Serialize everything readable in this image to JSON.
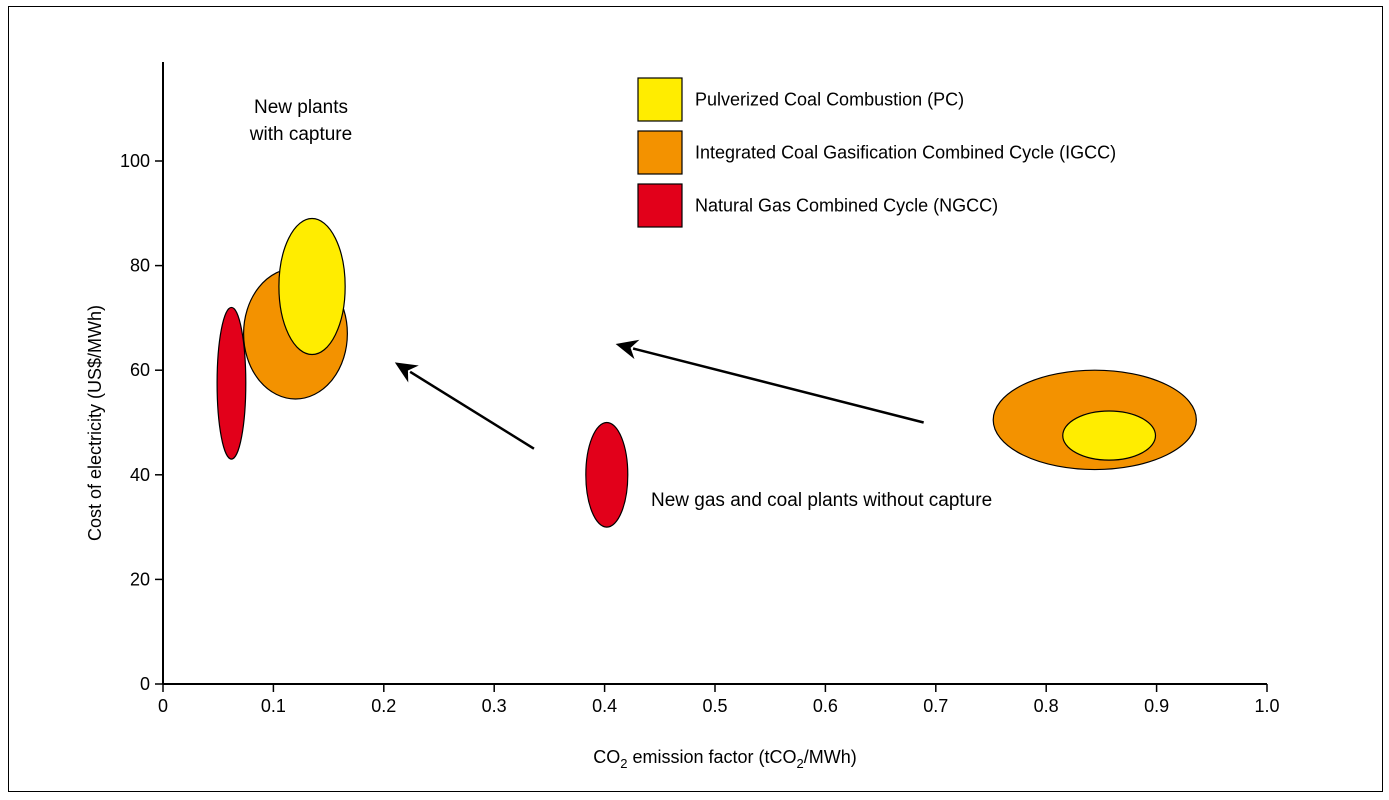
{
  "chart_data": {
    "type": "scatter",
    "title": "",
    "xlabel_main": "CO",
    "xlabel_sub": "2",
    "xlabel_rest": " emission factor (tCO",
    "xlabel_sub2": "2",
    "xlabel_end": "/MWh)",
    "ylabel": "Cost of electricity (US$/MWh)",
    "xlim": [
      0,
      1.0
    ],
    "ylim": [
      0,
      110
    ],
    "x_ticks": [
      "0",
      "0.1",
      "0.2",
      "0.3",
      "0.4",
      "0.5",
      "0.6",
      "0.7",
      "0.8",
      "0.9",
      "1.0"
    ],
    "x_tick_values": [
      0,
      0.1,
      0.2,
      0.3,
      0.4,
      0.5,
      0.6,
      0.7,
      0.8,
      0.9,
      1.0
    ],
    "y_ticks": [
      "0",
      "20",
      "40",
      "60",
      "80",
      "100"
    ],
    "y_tick_values": [
      0,
      20,
      40,
      60,
      80,
      100
    ],
    "grid": false,
    "legend_position": "top-right",
    "series": [
      {
        "name": "Pulverized Coal Combustion (PC)",
        "color": "#FFED00"
      },
      {
        "name": "Integrated Coal Gasification Combined Cycle (IGCC)",
        "color": "#F39200"
      },
      {
        "name": "Natural Gas Combined Cycle (NGCC)",
        "color": "#E2001A"
      }
    ],
    "ranges": [
      {
        "series": 1,
        "label": "IGCC with capture",
        "cx": 0.12,
        "cy": 67,
        "rx": 0.047,
        "ry": 12.5
      },
      {
        "series": 0,
        "label": "PC with capture",
        "cx": 0.135,
        "cy": 76,
        "rx": 0.03,
        "ry": 13
      },
      {
        "series": 2,
        "label": "NGCC with capture",
        "cx": 0.062,
        "cy": 57.5,
        "rx": 0.013,
        "ry": 14.5
      },
      {
        "series": 2,
        "label": "NGCC without capture",
        "cx": 0.402,
        "cy": 40,
        "rx": 0.019,
        "ry": 10
      },
      {
        "series": 1,
        "label": "IGCC without capture",
        "cx": 0.844,
        "cy": 50.5,
        "rx": 0.092,
        "ry": 9.5
      },
      {
        "series": 0,
        "label": "PC without capture",
        "cx": 0.857,
        "cy": 47.5,
        "rx": 0.042,
        "ry": 4.7
      }
    ],
    "arrows": [
      {
        "from": [
          0.336,
          45
        ],
        "to": [
          0.21,
          61.5
        ]
      },
      {
        "from": [
          0.689,
          50
        ],
        "to": [
          0.41,
          65
        ]
      }
    ],
    "annotations": [
      {
        "lines": [
          "New plants",
          "with capture"
        ],
        "x": 0.125,
        "y": 110
      },
      {
        "lines": [
          "New gas and coal plants without capture"
        ],
        "x": 0.44,
        "y": 35
      }
    ]
  }
}
